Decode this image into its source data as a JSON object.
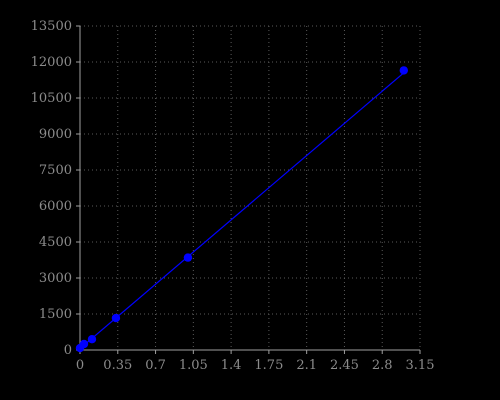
{
  "chart_data": {
    "type": "scatter",
    "title": "",
    "xlabel": "",
    "ylabel": "",
    "xlim": [
      0,
      3.15
    ],
    "ylim": [
      0,
      13500
    ],
    "x_ticks": [
      "0",
      "0.35",
      "0.7",
      "1.05",
      "1.4",
      "1.75",
      "2.1",
      "2.45",
      "2.8",
      "3.15"
    ],
    "y_ticks": [
      "0",
      "1500",
      "3000",
      "4500",
      "6000",
      "7500",
      "9000",
      "10500",
      "12000",
      "13500"
    ],
    "grid": true,
    "legend": "none",
    "series": [
      {
        "points": [
          {
            "x": 0.0,
            "y": 80
          },
          {
            "x": 0.037,
            "y": 250
          },
          {
            "x": 0.111,
            "y": 450
          },
          {
            "x": 0.333,
            "y": 1330
          },
          {
            "x": 1.0,
            "y": 3850
          },
          {
            "x": 3.0,
            "y": 11650
          }
        ],
        "fit_line": {
          "x": [
            0.0,
            3.0
          ],
          "y": [
            60,
            11550
          ]
        }
      }
    ],
    "colors": {
      "background": "#000000",
      "axis": "#a0a0a0",
      "grid": "#5a5a5a",
      "tick_label": "#8c8c8c",
      "series": "#0000ff"
    }
  }
}
